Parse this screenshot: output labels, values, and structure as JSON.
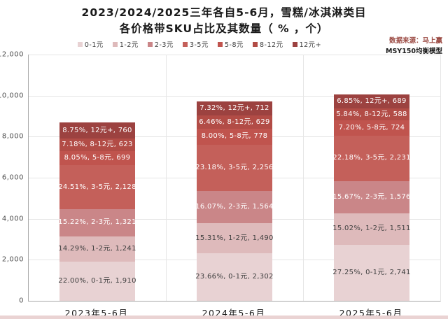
{
  "title": {
    "line1": "2023/2024/2025三年各自5-6月，雪糕/冰淇淋类目",
    "line2": "各价格带SKU占比及其数量（ % ，个）"
  },
  "source": {
    "line1": "数据来源：马上赢",
    "line2": "MSY150均衡模型"
  },
  "colors": {
    "source_accent": "#9b4a43",
    "axis_line": "#a8a8a8",
    "gridline": "#e4e4e4",
    "bottom_strip": "#ead3d3"
  },
  "chart_data": {
    "type": "bar",
    "stacked": true,
    "title": "2023/2024/2025三年各自5-6月，雪糕/冰淇淋类目 各价格带SKU占比及其数量（%，个）",
    "categories": [
      "2023年5-6月",
      "2024年5-6月",
      "2025年5-6月"
    ],
    "ylim": [
      0,
      12000
    ],
    "ytick_labels": [
      "0",
      "2,000",
      "4,000",
      "6,000",
      "8,000",
      "10,000",
      "12,000"
    ],
    "grid": true,
    "legend_position": "top-center",
    "bar_totals": [
      8682,
      9731,
      10060
    ],
    "series": [
      {
        "name": "0-1元",
        "color": "#e8d2d3",
        "text_color": "#404040",
        "values": [
          1910,
          2302,
          2741
        ],
        "pcts": [
          "22.00%",
          "23.66%",
          "27.25%"
        ],
        "counts": [
          "1,910",
          "2,302",
          "2,741"
        ]
      },
      {
        "name": "1-2元",
        "color": "#debabb",
        "text_color": "#404040",
        "values": [
          1241,
          1490,
          1511
        ],
        "pcts": [
          "14.29%",
          "15.31%",
          "15.02%"
        ],
        "counts": [
          "1,241",
          "1,490",
          "1,511"
        ]
      },
      {
        "name": "2-3元",
        "color": "#ca8688",
        "text_color": "#ffffff",
        "values": [
          1321,
          1564,
          1576
        ],
        "pcts": [
          "15.22%",
          "16.07%",
          "15.67%"
        ],
        "counts": [
          "1,321",
          "1,564",
          "1,576"
        ]
      },
      {
        "name": "3-5元",
        "color": "#c4605a",
        "text_color": "#ffffff",
        "values": [
          2128,
          2256,
          2231
        ],
        "pcts": [
          "24.51%",
          "23.18%",
          "22.18%"
        ],
        "counts": [
          "2,128",
          "2,256",
          "2,231"
        ]
      },
      {
        "name": "5-8元",
        "color": "#c0544e",
        "text_color": "#ffffff",
        "values": [
          699,
          778,
          724
        ],
        "pcts": [
          "8.05%",
          "8.00%",
          "7.20%"
        ],
        "counts": [
          "699",
          "778",
          "724"
        ]
      },
      {
        "name": "8-12元",
        "color": "#b24c46",
        "text_color": "#ffffff",
        "values": [
          623,
          629,
          588
        ],
        "pcts": [
          "7.18%",
          "6.46%",
          "5.84%"
        ],
        "counts": [
          "623",
          "629",
          "588"
        ]
      },
      {
        "name": "12元+",
        "color": "#9c4240",
        "text_color": "#ffffff",
        "values": [
          760,
          712,
          689
        ],
        "pcts": [
          "8.75%",
          "7.32%",
          "6.85%"
        ],
        "counts": [
          "760",
          "712",
          "689"
        ]
      }
    ]
  }
}
